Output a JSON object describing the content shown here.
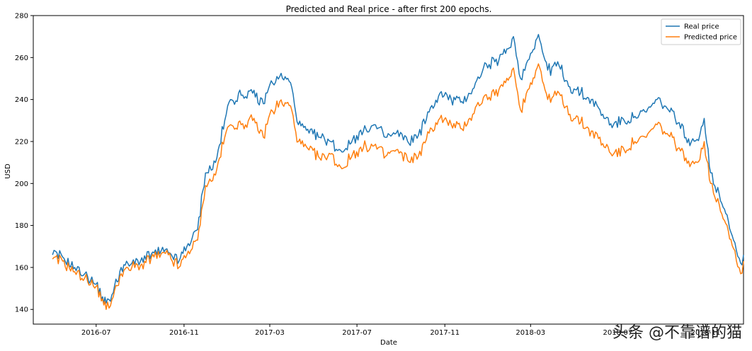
{
  "chart_data": {
    "type": "line",
    "title": "Predicted and Real price - after first 200 epochs.",
    "xlabel": "Date",
    "ylabel": "USD",
    "x_tick_labels": [
      "2016-07",
      "2016-11",
      "2017-03",
      "2017-07",
      "2017-11",
      "2018-03",
      "2018-07",
      "2018-11"
    ],
    "x_tick_dates": [
      "2016-07-01",
      "2016-11-01",
      "2017-03-01",
      "2017-07-01",
      "2017-11-01",
      "2018-03-01",
      "2018-07-01",
      "2018-11-01"
    ],
    "xlim": [
      "2016-04-04",
      "2018-12-24"
    ],
    "ylim": [
      133,
      280
    ],
    "y_ticks": [
      140,
      160,
      180,
      200,
      220,
      240,
      260,
      280
    ],
    "grid": false,
    "legend_position": "upper right",
    "series": [
      {
        "name": "Real price",
        "color": "#1f77b4",
        "points": [
          [
            "2016-05-01",
            166
          ],
          [
            "2016-05-15",
            165
          ],
          [
            "2016-06-01",
            160
          ],
          [
            "2016-06-15",
            157
          ],
          [
            "2016-07-01",
            152
          ],
          [
            "2016-07-10",
            146
          ],
          [
            "2016-07-15",
            143
          ],
          [
            "2016-07-25",
            148
          ],
          [
            "2016-08-05",
            160
          ],
          [
            "2016-08-20",
            162
          ],
          [
            "2016-09-01",
            163
          ],
          [
            "2016-09-20",
            167
          ],
          [
            "2016-10-10",
            167
          ],
          [
            "2016-10-25",
            163
          ],
          [
            "2016-11-05",
            170
          ],
          [
            "2016-11-20",
            178
          ],
          [
            "2016-12-01",
            205
          ],
          [
            "2016-12-15",
            210
          ],
          [
            "2016-12-28",
            230
          ],
          [
            "2017-01-05",
            240
          ],
          [
            "2017-01-20",
            242
          ],
          [
            "2017-02-05",
            243
          ],
          [
            "2017-02-20",
            238
          ],
          [
            "2017-03-01",
            247
          ],
          [
            "2017-03-15",
            251
          ],
          [
            "2017-03-30",
            248
          ],
          [
            "2017-04-10",
            228
          ],
          [
            "2017-04-25",
            224
          ],
          [
            "2017-05-10",
            222
          ],
          [
            "2017-05-25",
            220
          ],
          [
            "2017-06-10",
            215
          ],
          [
            "2017-06-25",
            221
          ],
          [
            "2017-07-10",
            225
          ],
          [
            "2017-07-25",
            228
          ],
          [
            "2017-08-10",
            222
          ],
          [
            "2017-08-25",
            224
          ],
          [
            "2017-09-10",
            220
          ],
          [
            "2017-09-25",
            223
          ],
          [
            "2017-10-10",
            234
          ],
          [
            "2017-10-25",
            243
          ],
          [
            "2017-11-10",
            240
          ],
          [
            "2017-11-25",
            239
          ],
          [
            "2017-12-10",
            245
          ],
          [
            "2017-12-25",
            255
          ],
          [
            "2018-01-10",
            258
          ],
          [
            "2018-01-25",
            262
          ],
          [
            "2018-02-05",
            270
          ],
          [
            "2018-02-15",
            250
          ],
          [
            "2018-03-01",
            262
          ],
          [
            "2018-03-12",
            271
          ],
          [
            "2018-03-25",
            254
          ],
          [
            "2018-04-10",
            256
          ],
          [
            "2018-04-25",
            246
          ],
          [
            "2018-05-10",
            243
          ],
          [
            "2018-05-25",
            240
          ],
          [
            "2018-06-10",
            233
          ],
          [
            "2018-06-25",
            228
          ],
          [
            "2018-07-10",
            230
          ],
          [
            "2018-07-25",
            232
          ],
          [
            "2018-08-10",
            234
          ],
          [
            "2018-08-25",
            240
          ],
          [
            "2018-09-10",
            235
          ],
          [
            "2018-09-25",
            229
          ],
          [
            "2018-10-10",
            218
          ],
          [
            "2018-10-20",
            221
          ],
          [
            "2018-10-30",
            231
          ],
          [
            "2018-11-08",
            205
          ],
          [
            "2018-11-20",
            195
          ],
          [
            "2018-12-01",
            185
          ],
          [
            "2018-12-10",
            173
          ],
          [
            "2018-12-20",
            162
          ],
          [
            "2018-12-24",
            166
          ]
        ]
      },
      {
        "name": "Predicted price",
        "color": "#ff7f0e",
        "points": [
          [
            "2016-05-01",
            164
          ],
          [
            "2016-05-15",
            163
          ],
          [
            "2016-06-01",
            158
          ],
          [
            "2016-06-15",
            155
          ],
          [
            "2016-07-01",
            151
          ],
          [
            "2016-07-10",
            145
          ],
          [
            "2016-07-15",
            140
          ],
          [
            "2016-07-25",
            146
          ],
          [
            "2016-08-05",
            157
          ],
          [
            "2016-08-20",
            160
          ],
          [
            "2016-09-01",
            161
          ],
          [
            "2016-09-20",
            165
          ],
          [
            "2016-10-10",
            166
          ],
          [
            "2016-10-25",
            160
          ],
          [
            "2016-11-05",
            166
          ],
          [
            "2016-11-20",
            173
          ],
          [
            "2016-12-01",
            199
          ],
          [
            "2016-12-15",
            204
          ],
          [
            "2016-12-28",
            222
          ],
          [
            "2017-01-05",
            228
          ],
          [
            "2017-01-20",
            228
          ],
          [
            "2017-02-05",
            230
          ],
          [
            "2017-02-20",
            222
          ],
          [
            "2017-03-01",
            233
          ],
          [
            "2017-03-15",
            239
          ],
          [
            "2017-03-30",
            237
          ],
          [
            "2017-04-10",
            220
          ],
          [
            "2017-04-25",
            216
          ],
          [
            "2017-05-10",
            212
          ],
          [
            "2017-05-25",
            214
          ],
          [
            "2017-06-10",
            207
          ],
          [
            "2017-06-25",
            214
          ],
          [
            "2017-07-10",
            217
          ],
          [
            "2017-07-25",
            218
          ],
          [
            "2017-08-10",
            213
          ],
          [
            "2017-08-25",
            216
          ],
          [
            "2017-09-10",
            211
          ],
          [
            "2017-09-25",
            213
          ],
          [
            "2017-10-10",
            224
          ],
          [
            "2017-10-25",
            231
          ],
          [
            "2017-11-10",
            228
          ],
          [
            "2017-11-25",
            226
          ],
          [
            "2017-12-10",
            233
          ],
          [
            "2017-12-25",
            241
          ],
          [
            "2018-01-10",
            242
          ],
          [
            "2018-01-25",
            248
          ],
          [
            "2018-02-05",
            255
          ],
          [
            "2018-02-15",
            235
          ],
          [
            "2018-03-01",
            248
          ],
          [
            "2018-03-12",
            257
          ],
          [
            "2018-03-25",
            240
          ],
          [
            "2018-04-10",
            243
          ],
          [
            "2018-04-25",
            233
          ],
          [
            "2018-05-10",
            229
          ],
          [
            "2018-05-25",
            225
          ],
          [
            "2018-06-10",
            219
          ],
          [
            "2018-06-25",
            214
          ],
          [
            "2018-07-10",
            216
          ],
          [
            "2018-07-25",
            220
          ],
          [
            "2018-08-10",
            222
          ],
          [
            "2018-08-25",
            228
          ],
          [
            "2018-09-10",
            223
          ],
          [
            "2018-09-25",
            217
          ],
          [
            "2018-10-10",
            208
          ],
          [
            "2018-10-20",
            210
          ],
          [
            "2018-10-30",
            220
          ],
          [
            "2018-11-08",
            200
          ],
          [
            "2018-11-20",
            190
          ],
          [
            "2018-12-01",
            180
          ],
          [
            "2018-12-10",
            169
          ],
          [
            "2018-12-20",
            157
          ],
          [
            "2018-12-24",
            163
          ]
        ]
      }
    ]
  },
  "watermark": {
    "text": "头条 @不靠谱的猫"
  }
}
